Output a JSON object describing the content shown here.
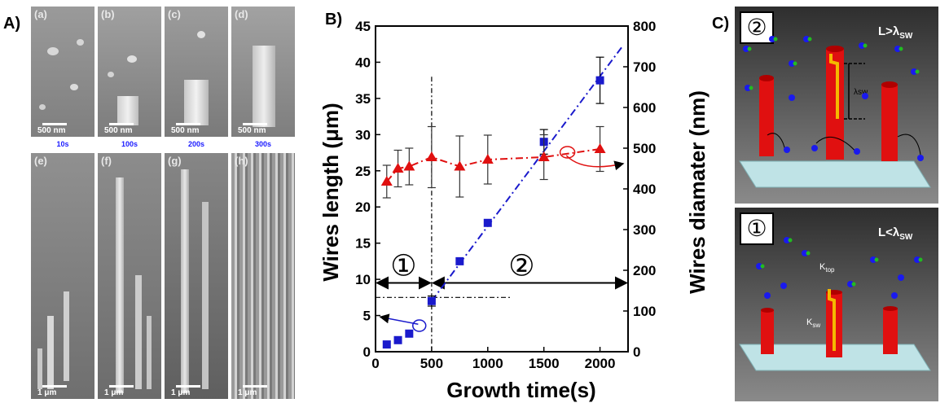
{
  "panel_a": {
    "letter": "A)",
    "top_images": [
      {
        "tag": "(a)",
        "scale": "500 nm",
        "time": "10s"
      },
      {
        "tag": "(b)",
        "scale": "500 nm",
        "time": "100s"
      },
      {
        "tag": "(c)",
        "scale": "500 nm",
        "time": "200s"
      },
      {
        "tag": "(d)",
        "scale": "500 nm",
        "time": "300s"
      }
    ],
    "bottom_images": [
      {
        "tag": "(e)",
        "scale": "1 μm"
      },
      {
        "tag": "(f)",
        "scale": "1 μm"
      },
      {
        "tag": "(g)",
        "scale": "1 μm"
      },
      {
        "tag": "(h)",
        "scale": "1 μm"
      }
    ]
  },
  "chart_data": {
    "type": "line",
    "panel_letter": "B)",
    "xlabel": "Growth time(s)",
    "ylabel_left": "Wires length (μm)",
    "ylabel_right": "Wires diamater (nm)",
    "xlim": [
      0,
      2250
    ],
    "ylim_left": [
      0,
      45
    ],
    "ylim_right": [
      0,
      800
    ],
    "xticks": [
      0,
      500,
      1000,
      1500,
      2000
    ],
    "yticks_left": [
      0,
      5,
      10,
      15,
      20,
      25,
      30,
      35,
      40,
      45
    ],
    "yticks_right": [
      0,
      100,
      200,
      300,
      400,
      500,
      600,
      700,
      800
    ],
    "series": [
      {
        "axis": "left",
        "marker": "square",
        "color": "#1a1acc",
        "x": [
          100,
          200,
          300,
          500,
          750,
          1000,
          1500,
          2000
        ],
        "y": [
          1.0,
          1.6,
          2.5,
          7.0,
          12.5,
          17.8,
          29.0,
          37.5
        ],
        "err": [
          0,
          0,
          0,
          0.7,
          0,
          0,
          1.7,
          3.2
        ]
      },
      {
        "axis": "right",
        "marker": "triangle",
        "color": "#e01010",
        "x": [
          100,
          200,
          300,
          500,
          750,
          1000,
          1500,
          2000
        ],
        "y": [
          418,
          450,
          455,
          478,
          455,
          472,
          478,
          498
        ],
        "err": [
          40,
          45,
          45,
          75,
          75,
          60,
          55,
          55
        ]
      }
    ],
    "regions": [
      {
        "label": "①"
      },
      {
        "label": "②"
      }
    ],
    "grid": false
  },
  "panel_c": {
    "letter": "C)",
    "top": {
      "badge": "②",
      "condition": "L>λ",
      "condition_sub": "SW",
      "label": "λsw"
    },
    "bottom": {
      "badge": "①",
      "condition": "L<λ",
      "condition_sub": "SW",
      "k_top": "K",
      "k_top_sub": "top",
      "k_sw": "K",
      "k_sw_sub": "sw"
    }
  }
}
